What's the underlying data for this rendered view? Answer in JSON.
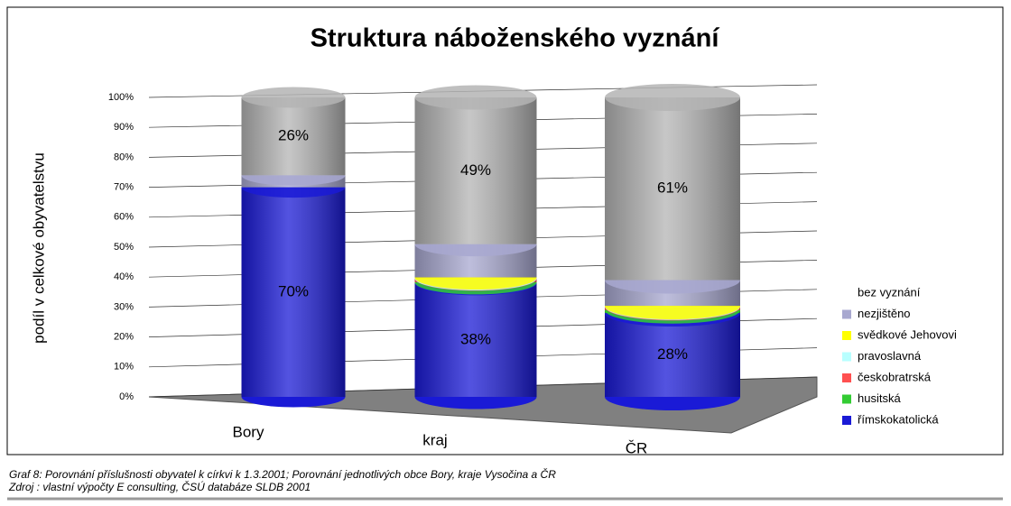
{
  "chart_data": {
    "type": "stacked-cylinder",
    "title": "Struktura náboženského vyznání",
    "y_label": "podíl v celkové obyvatelstvu",
    "categories": [
      "Bory",
      "kraj",
      "ČR"
    ],
    "series": [
      {
        "name": "římskokatolická",
        "color": "#1a1ad6",
        "values": [
          70,
          38,
          28
        ],
        "value_labels": [
          "70%",
          "38%",
          "28%"
        ]
      },
      {
        "name": "husitská",
        "color": "#33cc33",
        "values": [
          0,
          0.3,
          1
        ]
      },
      {
        "name": "českobratrská",
        "color": "#ff5050",
        "values": [
          0,
          1.2,
          1
        ]
      },
      {
        "name": "pravoslavná",
        "color": "#b8ffff",
        "values": [
          0,
          0.1,
          0.2
        ]
      },
      {
        "name": "svědkové Jehovovi",
        "color": "#ffff00",
        "values": [
          0,
          0.3,
          0.2
        ]
      },
      {
        "name": "nezjištěno",
        "color": "#a8a8d0",
        "values": [
          4,
          11.1,
          8.6
        ]
      },
      {
        "name": "bez vyznání",
        "color": "#b4b4b4",
        "values": [
          26,
          49,
          61
        ],
        "value_labels": [
          "26%",
          "49%",
          "61%"
        ]
      }
    ],
    "ylim": [
      0,
      100
    ],
    "yticks": [
      {
        "value": 0,
        "label": "0%"
      },
      {
        "value": 10,
        "label": "10%"
      },
      {
        "value": 20,
        "label": "20%"
      },
      {
        "value": 30,
        "label": "30%"
      },
      {
        "value": 40,
        "label": "40%"
      },
      {
        "value": 50,
        "label": "50%"
      },
      {
        "value": 60,
        "label": "60%"
      },
      {
        "value": 70,
        "label": "70%"
      },
      {
        "value": 80,
        "label": "80%"
      },
      {
        "value": 90,
        "label": "90%"
      },
      {
        "value": 100,
        "label": "100%"
      }
    ],
    "grid": true,
    "legend": "right",
    "caption": [
      "Graf 8: Porovnání příslušnosti obyvatel k církvi k 1.3.2001; Porovnání jednotlivých obce Bory, kraje Vysočina a ČR",
      "Zdroj : vlastní výpočty E consulting, ČSÚ databáze SLDB 2001"
    ]
  }
}
